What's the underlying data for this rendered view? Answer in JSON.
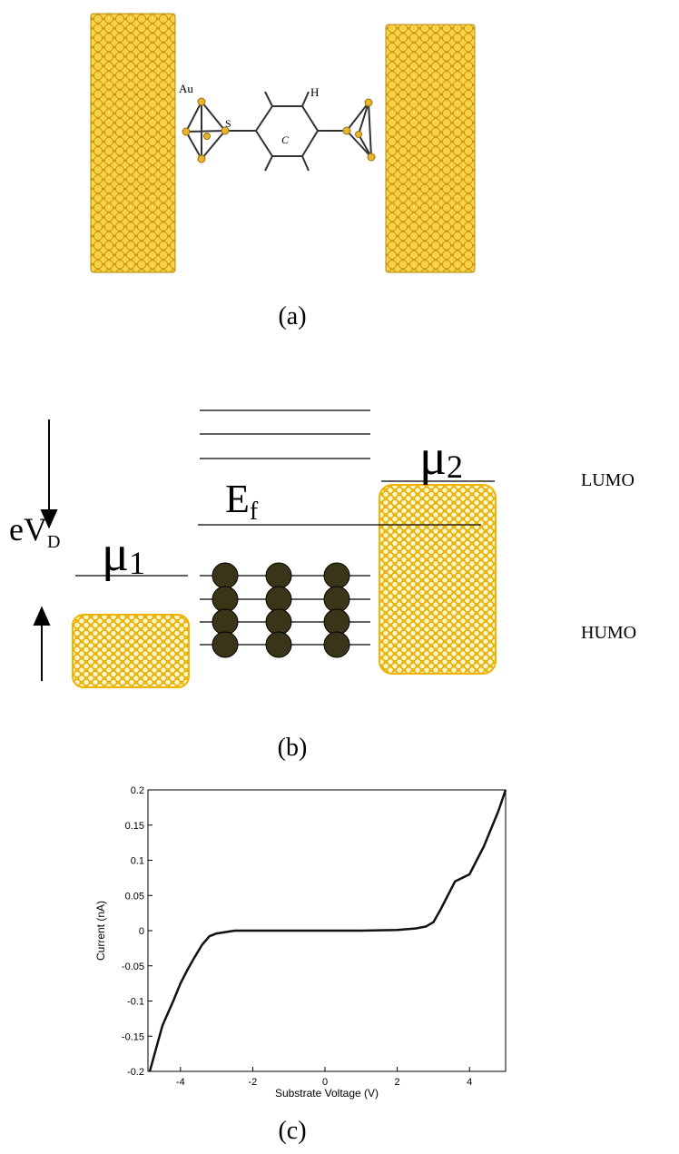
{
  "panel_a": {
    "caption": "(a)",
    "label_au": "Au",
    "label_s": "S",
    "label_c": "C",
    "label_h": "H"
  },
  "panel_b": {
    "caption": "(b)",
    "ev": "eV",
    "ev_sub": "D",
    "mu1": "μ",
    "mu1_sub": "1",
    "mu2": "μ",
    "mu2_sub": "2",
    "ef": "E",
    "ef_sub": "f",
    "lumo": "LUMO",
    "humo": "HUMO"
  },
  "chart_data": {
    "type": "line",
    "caption": "(c)",
    "x_label": "Substrate Voltage (V)",
    "y_label": "Current (nA)",
    "x": [
      -4.85,
      -4.5,
      -4.2,
      -4,
      -3.8,
      -3.6,
      -3.4,
      -3.2,
      -3,
      -2.5,
      -2,
      -1,
      0,
      1,
      2,
      2.5,
      2.8,
      3,
      3.2,
      3.4,
      3.6,
      3.8,
      4,
      4.2,
      4.4,
      4.6,
      4.8,
      5
    ],
    "series": [
      {
        "color": "#111111",
        "values": [
          -0.2,
          -0.135,
          -0.1,
          -0.075,
          -0.055,
          -0.037,
          -0.02,
          -0.008,
          -0.004,
          0,
          0,
          0,
          0,
          0,
          0.001,
          0.003,
          0.006,
          0.012,
          0.03,
          0.05,
          0.07,
          0.075,
          0.08,
          0.1,
          0.12,
          0.145,
          0.17,
          0.2
        ]
      }
    ],
    "xlim": [
      -4.9,
      5
    ],
    "xticks": [
      -4,
      -2,
      0,
      2,
      4
    ],
    "ylim": [
      -0.2,
      0.2
    ],
    "yticks": [
      -0.2,
      -0.15,
      -0.1,
      -0.05,
      0,
      0.05,
      0.1,
      0.15,
      0.2
    ]
  }
}
